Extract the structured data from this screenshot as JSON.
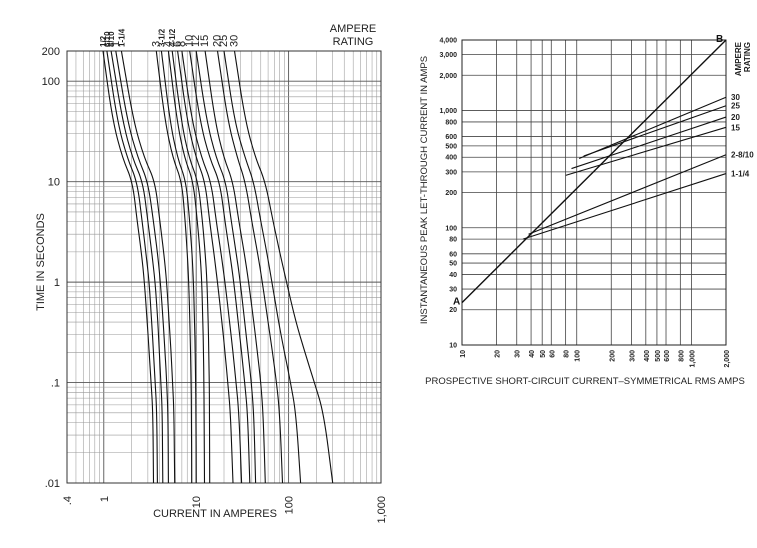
{
  "chart_data": [
    {
      "type": "line",
      "xscale": "log",
      "yscale": "log",
      "xlim": [
        0.4,
        1000
      ],
      "ylim": [
        0.01,
        200
      ],
      "xlabel": "CURRENT IN AMPERES",
      "ylabel": "TIME IN SECONDS",
      "legend_title": "AMPERE RATING",
      "x_ticks": [
        ".4",
        "1",
        "10",
        "100",
        "1,000"
      ],
      "y_ticks": [
        ".01",
        ".1",
        "1",
        "10",
        "100",
        "200"
      ],
      "grid": true,
      "series": [
        {
          "name": "1/2",
          "points": [
            [
              0.98,
              200
            ],
            [
              1.25,
              40
            ],
            [
              1.6,
              17
            ],
            [
              2.05,
              10
            ],
            [
              2.3,
              4
            ],
            [
              2.55,
              2
            ],
            [
              2.75,
              1
            ],
            [
              2.95,
              0.4
            ],
            [
              3.1,
              0.2
            ],
            [
              3.25,
              0.1
            ],
            [
              3.4,
              0.05
            ],
            [
              3.45,
              0.01
            ]
          ]
        },
        {
          "name": "6/10",
          "points": [
            [
              1.08,
              200
            ],
            [
              1.4,
              40
            ],
            [
              1.8,
              17
            ],
            [
              2.3,
              10
            ],
            [
              2.6,
              4
            ],
            [
              2.85,
              2
            ],
            [
              3.1,
              1
            ],
            [
              3.3,
              0.4
            ],
            [
              3.45,
              0.2
            ],
            [
              3.6,
              0.1
            ],
            [
              3.75,
              0.05
            ],
            [
              3.8,
              0.01
            ]
          ]
        },
        {
          "name": "8/10",
          "points": [
            [
              1.2,
              200
            ],
            [
              1.6,
              40
            ],
            [
              2.05,
              17
            ],
            [
              2.65,
              10
            ],
            [
              3.0,
              4
            ],
            [
              3.3,
              2
            ],
            [
              3.6,
              1
            ],
            [
              3.85,
              0.4
            ],
            [
              4.0,
              0.2
            ],
            [
              4.15,
              0.1
            ],
            [
              4.3,
              0.05
            ],
            [
              4.35,
              0.01
            ]
          ]
        },
        {
          "name": "1",
          "points": [
            [
              1.35,
              200
            ],
            [
              1.8,
              40
            ],
            [
              2.35,
              17
            ],
            [
              3.0,
              10
            ],
            [
              3.45,
              4
            ],
            [
              3.8,
              2
            ],
            [
              4.1,
              1
            ],
            [
              4.4,
              0.4
            ],
            [
              4.6,
              0.2
            ],
            [
              4.8,
              0.1
            ],
            [
              4.95,
              0.05
            ],
            [
              5.0,
              0.01
            ]
          ]
        },
        {
          "name": "1-1/4",
          "points": [
            [
              1.55,
              200
            ],
            [
              2.1,
              40
            ],
            [
              2.75,
              17
            ],
            [
              3.6,
              10
            ],
            [
              4.05,
              4
            ],
            [
              4.45,
              2
            ],
            [
              4.8,
              1
            ],
            [
              5.1,
              0.4
            ],
            [
              5.35,
              0.2
            ],
            [
              5.55,
              0.1
            ],
            [
              5.75,
              0.05
            ],
            [
              5.85,
              0.01
            ]
          ]
        },
        {
          "name": "3",
          "points": [
            [
              3.7,
              200
            ],
            [
              4.6,
              40
            ],
            [
              5.6,
              17
            ],
            [
              7.0,
              10
            ],
            [
              7.6,
              4
            ],
            [
              8.0,
              2
            ],
            [
              8.3,
              1
            ],
            [
              8.55,
              0.4
            ],
            [
              8.7,
              0.2
            ],
            [
              8.8,
              0.1
            ],
            [
              8.9,
              0.05
            ],
            [
              8.95,
              0.01
            ]
          ]
        },
        {
          "name": "3-1/2",
          "points": [
            [
              4.2,
              200
            ],
            [
              5.2,
              40
            ],
            [
              6.3,
              17
            ],
            [
              7.8,
              10
            ],
            [
              8.5,
              4
            ],
            [
              9.0,
              2
            ],
            [
              9.35,
              1
            ],
            [
              9.6,
              0.4
            ],
            [
              9.75,
              0.2
            ],
            [
              9.85,
              0.1
            ],
            [
              9.95,
              0.05
            ],
            [
              10.0,
              0.01
            ]
          ]
        },
        {
          "name": "4",
          "points": [
            [
              5.0,
              200
            ],
            [
              6.2,
              40
            ],
            [
              7.5,
              17
            ],
            [
              9.3,
              10
            ],
            [
              10.3,
              4
            ],
            [
              11.0,
              2
            ],
            [
              11.5,
              1
            ],
            [
              11.8,
              0.4
            ],
            [
              12.0,
              0.2
            ],
            [
              12.1,
              0.1
            ],
            [
              12.2,
              0.05
            ],
            [
              12.3,
              0.01
            ]
          ]
        },
        {
          "name": "4-1/2",
          "points": [
            [
              5.5,
              200
            ],
            [
              6.9,
              40
            ],
            [
              8.4,
              17
            ],
            [
              10.5,
              10
            ],
            [
              11.7,
              4
            ],
            [
              12.5,
              2
            ],
            [
              13.1,
              1
            ],
            [
              13.5,
              0.4
            ],
            [
              13.7,
              0.2
            ],
            [
              13.85,
              0.1
            ],
            [
              13.95,
              0.05
            ],
            [
              14.0,
              0.01
            ]
          ]
        },
        {
          "name": "6",
          "points": [
            [
              6.3,
              200
            ],
            [
              8.0,
              40
            ],
            [
              10.0,
              17
            ],
            [
              12.5,
              10
            ],
            [
              14.0,
              4
            ],
            [
              15.5,
              2
            ],
            [
              17.0,
              1
            ],
            [
              19.0,
              0.4
            ],
            [
              20.5,
              0.2
            ],
            [
              22.0,
              0.1
            ],
            [
              23.5,
              0.05
            ],
            [
              25.0,
              0.01
            ]
          ]
        },
        {
          "name": "8",
          "points": [
            [
              7.0,
              200
            ],
            [
              9.0,
              40
            ],
            [
              11.5,
              17
            ],
            [
              14.5,
              10
            ],
            [
              16.5,
              4
            ],
            [
              18.5,
              2
            ],
            [
              20.5,
              1
            ],
            [
              23.0,
              0.4
            ],
            [
              25.0,
              0.2
            ],
            [
              27.0,
              0.1
            ],
            [
              29.0,
              0.05
            ],
            [
              31.0,
              0.01
            ]
          ]
        },
        {
          "name": "10",
          "points": [
            [
              8.5,
              200
            ],
            [
              11.0,
              40
            ],
            [
              14.0,
              17
            ],
            [
              18.0,
              10
            ],
            [
              20.5,
              4
            ],
            [
              23.0,
              2
            ],
            [
              25.5,
              1
            ],
            [
              28.5,
              0.4
            ],
            [
              31.0,
              0.2
            ],
            [
              33.5,
              0.1
            ],
            [
              36.0,
              0.05
            ],
            [
              38.0,
              0.01
            ]
          ]
        },
        {
          "name": "12",
          "points": [
            [
              10.0,
              200
            ],
            [
              13.0,
              40
            ],
            [
              16.5,
              17
            ],
            [
              21.0,
              10
            ],
            [
              24.0,
              4
            ],
            [
              27.0,
              2
            ],
            [
              30.0,
              1
            ],
            [
              33.5,
              0.4
            ],
            [
              36.5,
              0.2
            ],
            [
              39.5,
              0.1
            ],
            [
              42.0,
              0.05
            ],
            [
              44.0,
              0.01
            ]
          ]
        },
        {
          "name": "15",
          "points": [
            [
              12.5,
              200
            ],
            [
              16.0,
              40
            ],
            [
              20.0,
              17
            ],
            [
              25.0,
              10
            ],
            [
              29.0,
              4
            ],
            [
              33.0,
              2
            ],
            [
              37.0,
              1
            ],
            [
              42.0,
              0.4
            ],
            [
              46.0,
              0.2
            ],
            [
              50.0,
              0.1
            ],
            [
              53.0,
              0.05
            ],
            [
              56.0,
              0.01
            ]
          ]
        },
        {
          "name": "20",
          "points": [
            [
              17.0,
              200
            ],
            [
              22.0,
              40
            ],
            [
              28.0,
              17
            ],
            [
              34.0,
              10
            ],
            [
              40.0,
              4
            ],
            [
              46.0,
              2
            ],
            [
              52.0,
              1
            ],
            [
              60.0,
              0.4
            ],
            [
              67.0,
              0.2
            ],
            [
              74.0,
              0.1
            ],
            [
              80.0,
              0.05
            ],
            [
              86.0,
              0.01
            ]
          ]
        },
        {
          "name": "25",
          "points": [
            [
              20.0,
              200
            ],
            [
              26.0,
              40
            ],
            [
              34.0,
              17
            ],
            [
              42.0,
              10
            ],
            [
              50.0,
              4
            ],
            [
              58.0,
              2
            ],
            [
              66.0,
              1
            ],
            [
              78.0,
              0.4
            ],
            [
              90.0,
              0.2
            ],
            [
              105.0,
              0.1
            ],
            [
              120.0,
              0.05
            ],
            [
              135.0,
              0.01
            ]
          ]
        },
        {
          "name": "30",
          "points": [
            [
              26.0,
              200
            ],
            [
              34.0,
              40
            ],
            [
              44.0,
              17
            ],
            [
              56.0,
              10
            ],
            [
              68.0,
              4
            ],
            [
              80.0,
              2
            ],
            [
              95.0,
              1
            ],
            [
              120.0,
              0.4
            ],
            [
              150.0,
              0.2
            ],
            [
              190.0,
              0.1
            ],
            [
              240.0,
              0.05
            ],
            [
              300.0,
              0.01
            ]
          ]
        }
      ]
    },
    {
      "type": "line",
      "xscale": "log",
      "yscale": "log",
      "xlim": [
        10,
        2000
      ],
      "ylim": [
        10,
        4000
      ],
      "xlabel": "PROSPECTIVE SHORT-CIRCUIT CURRENT–SYMMETRICAL RMS AMPS",
      "ylabel": "INSTANTANEOUS PEAK LET-THROUGH CURRENT IN AMPS",
      "legend_title": "AMPERE RATING",
      "x_ticks": [
        "10",
        "20",
        "30",
        "40",
        "50",
        "60",
        "80",
        "100",
        "200",
        "300",
        "400",
        "500",
        "600",
        "800",
        "1,000",
        "2,000"
      ],
      "y_ticks": [
        "10",
        "20",
        "30",
        "40",
        "50",
        "60",
        "80",
        "100",
        "200",
        "300",
        "400",
        "500",
        "600",
        "800",
        "1,000",
        "2,000",
        "3,000",
        "4,000"
      ],
      "grid": true,
      "point_labels": [
        "A",
        "B"
      ],
      "series": [
        {
          "name": "A-B",
          "points": [
            [
              10,
              23
            ],
            [
              2000,
              4000
            ]
          ]
        },
        {
          "name": "30",
          "points": [
            [
              105,
              390
            ],
            [
              2000,
              1300
            ]
          ]
        },
        {
          "name": "25",
          "points": [
            [
              115,
              410
            ],
            [
              2000,
              1100
            ]
          ]
        },
        {
          "name": "20",
          "points": [
            [
              90,
              320
            ],
            [
              2000,
              880
            ]
          ]
        },
        {
          "name": "15",
          "points": [
            [
              80,
              280
            ],
            [
              2000,
              720
            ]
          ]
        },
        {
          "name": "2-8/10",
          "points": [
            [
              38,
              88
            ],
            [
              2000,
              420
            ]
          ]
        },
        {
          "name": "1-1/4",
          "points": [
            [
              34,
              80
            ],
            [
              2000,
              290
            ]
          ]
        }
      ]
    }
  ]
}
